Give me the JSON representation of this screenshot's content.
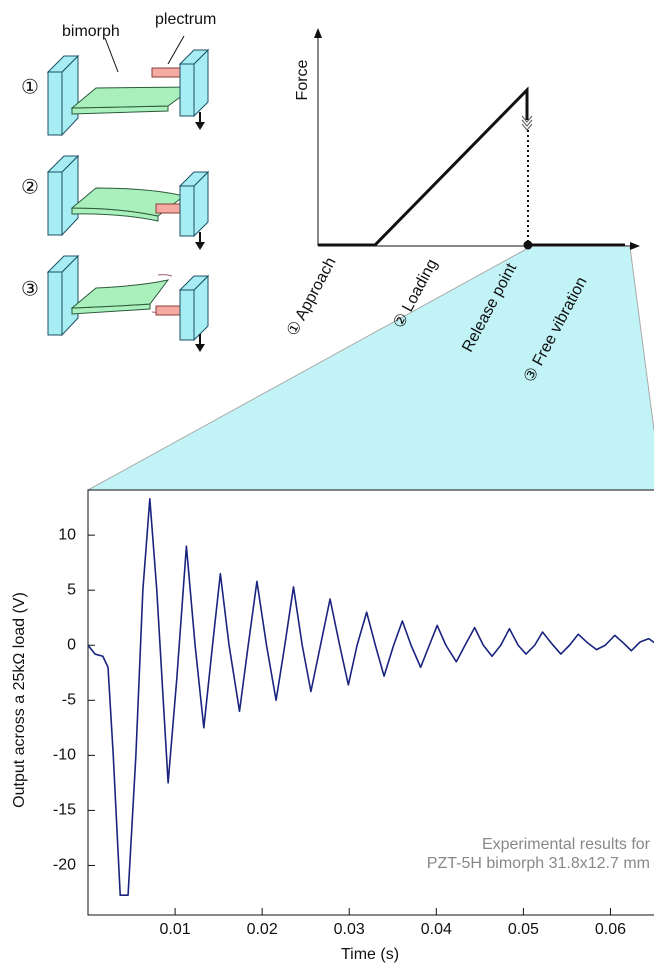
{
  "diagram": {
    "bimorph_label": "bimorph",
    "plectrum_label": "plectrum",
    "steps": [
      "①",
      "②",
      "③"
    ],
    "force_axis_label": "Force",
    "phases": [
      "① Approach",
      "② Loading",
      "Release point",
      "③ Free vibration"
    ]
  },
  "chart_data": {
    "type": "line",
    "xlabel": "Time (s)",
    "ylabel": "Output across a 25kΩ load (V)",
    "annotation": [
      "Experimental results for",
      "PZT-5H bimorph 31.8x12.7 mm"
    ],
    "x": [
      0,
      0.0008,
      0.0017,
      0.0023,
      0.0029,
      0.0037,
      0.0046,
      0.0055,
      0.0063,
      0.0071,
      0.0079,
      0.0092,
      0.0102,
      0.0113,
      0.0123,
      0.0133,
      0.0143,
      0.0152,
      0.0162,
      0.0174,
      0.0184,
      0.0194,
      0.0205,
      0.0216,
      0.0226,
      0.0236,
      0.0246,
      0.0256,
      0.0267,
      0.0278,
      0.0289,
      0.0299,
      0.0309,
      0.032,
      0.033,
      0.034,
      0.0351,
      0.0361,
      0.0371,
      0.0382,
      0.0392,
      0.0401,
      0.0411,
      0.0423,
      0.0433,
      0.0444,
      0.0454,
      0.0464,
      0.0474,
      0.0484,
      0.0494,
      0.0503,
      0.0513,
      0.0522,
      0.0532,
      0.0543,
      0.0553,
      0.0563,
      0.0574,
      0.0584,
      0.0594,
      0.0605,
      0.0615,
      0.0624,
      0.0634,
      0.0644,
      0.0651
    ],
    "series": [
      {
        "color": "#1a237e",
        "values": [
          0,
          -0.8,
          -1,
          -2,
          -10,
          -22.7,
          -22.7,
          -10,
          5,
          13.3,
          5,
          -12.5,
          -3,
          9,
          0,
          -7.5,
          0,
          6.5,
          0,
          -6,
          0,
          5.8,
          0,
          -5,
          0,
          5.3,
          0,
          -4.2,
          0,
          4.2,
          0,
          -3.6,
          0,
          3,
          0,
          -2.8,
          0,
          2.2,
          0,
          -2,
          0,
          1.8,
          0,
          -1.5,
          0,
          1.6,
          0,
          -1,
          0,
          1.5,
          0,
          -0.8,
          0,
          1.2,
          0.2,
          -0.8,
          0,
          1,
          0.2,
          -0.4,
          0,
          0.9,
          0.2,
          -0.5,
          0.3,
          0.6,
          0.2
        ]
      }
    ],
    "xlim": [
      0,
      0.065
    ],
    "ylim": [
      -24.5,
      14.1
    ],
    "xticks": [
      0.01,
      0.02,
      0.03,
      0.04,
      0.05,
      0.06
    ],
    "yticks": [
      -20,
      -15,
      -10,
      -5,
      0,
      5,
      10
    ]
  }
}
